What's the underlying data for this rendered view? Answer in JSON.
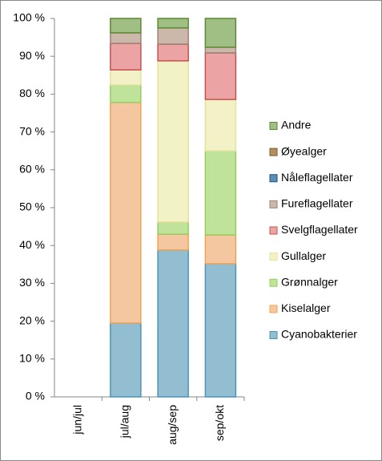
{
  "chart_data": {
    "type": "stacked_bar",
    "categories": [
      "jun/jul",
      "jul/aug",
      "aug/sep",
      "sep/okt"
    ],
    "series": [
      {
        "name": "Cyanobakterier",
        "color": "#93bdd0",
        "border": "#4b94b8",
        "values": [
          null,
          19.5,
          38.8,
          35.2
        ]
      },
      {
        "name": "Kiselalger",
        "color": "#f5c7a0",
        "border": "#f0a455",
        "values": [
          null,
          58.3,
          4.2,
          7.6
        ]
      },
      {
        "name": "Grønnalger",
        "color": "#bfe39a",
        "border": "#9acd5f",
        "values": [
          null,
          4.6,
          3.2,
          22.2
        ]
      },
      {
        "name": "Gullalger",
        "color": "#f3f1c6",
        "border": "#e3e39a",
        "values": [
          null,
          4.0,
          42.6,
          13.6
        ]
      },
      {
        "name": "Svelgflagellater",
        "color": "#eba3a3",
        "border": "#c9504d",
        "values": [
          null,
          7.0,
          4.4,
          12.3
        ]
      },
      {
        "name": "Fureflagellater",
        "color": "#cbb8ab",
        "border": "#9e8272",
        "values": [
          null,
          2.8,
          4.3,
          1.5
        ]
      },
      {
        "name": "Nåleflagellater",
        "color": "#5b8db5",
        "border": "#23517a",
        "values": [
          null,
          0,
          0,
          0
        ]
      },
      {
        "name": "Øyealger",
        "color": "#b58e5e",
        "border": "#7b5a2b",
        "values": [
          null,
          0,
          0,
          0
        ]
      },
      {
        "name": "Andre",
        "color": "#a0bf85",
        "border": "#5c8a33",
        "values": [
          null,
          3.8,
          2.5,
          7.6
        ]
      }
    ],
    "ylim": [
      0,
      100
    ],
    "yticks": [
      {
        "value": 0,
        "label": "0 %"
      },
      {
        "value": 10,
        "label": "10 %"
      },
      {
        "value": 20,
        "label": "20 %"
      },
      {
        "value": 30,
        "label": "30 %"
      },
      {
        "value": 40,
        "label": "40 %"
      },
      {
        "value": 50,
        "label": "50 %"
      },
      {
        "value": 60,
        "label": "60 %"
      },
      {
        "value": 70,
        "label": "70 %"
      },
      {
        "value": 80,
        "label": "80 %"
      },
      {
        "value": 90,
        "label": "90 %"
      },
      {
        "value": 100,
        "label": "100 %"
      }
    ],
    "grid": false,
    "legend": "right"
  }
}
